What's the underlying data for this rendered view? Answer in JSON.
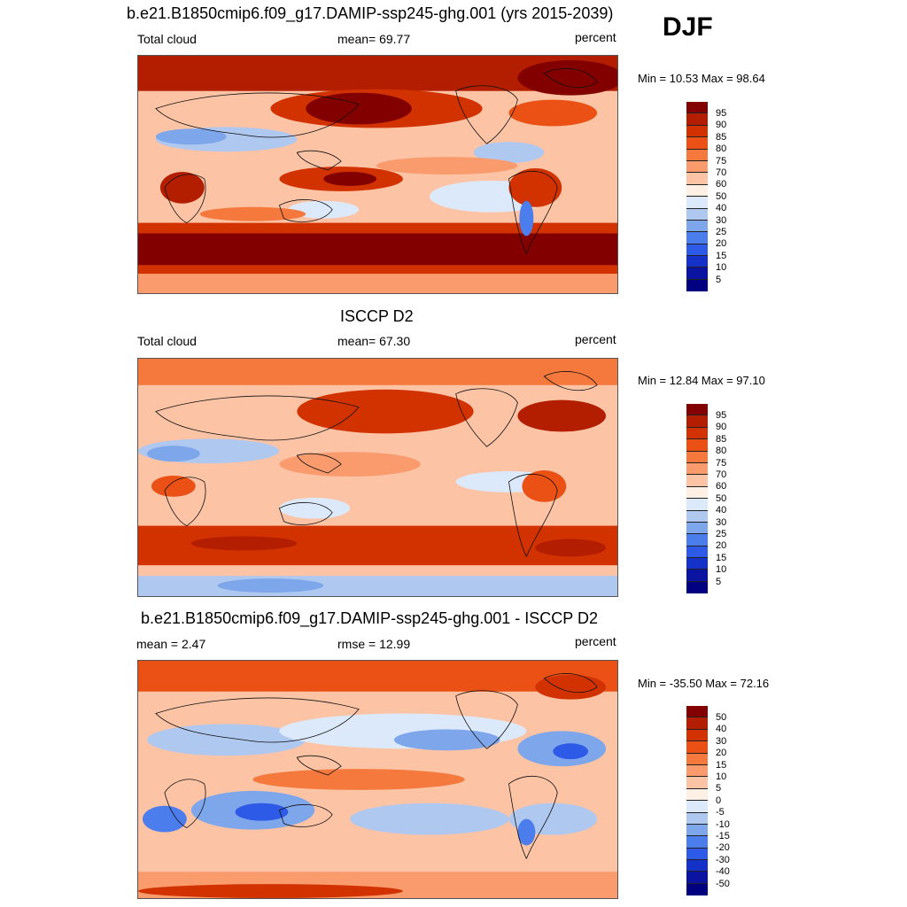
{
  "season": "DJF",
  "panels": [
    {
      "title": "b.e21.B1850cmip6.f09_g17.DAMIP-ssp245-ghg.001 (yrs 2015-2039)",
      "left_label": "Total cloud",
      "center_label": "mean=  69.77",
      "right_label": "percent",
      "minmax": "Min =  10.53 Max =  98.64",
      "colorbar_ticks": [
        "95",
        "90",
        "85",
        "80",
        "75",
        "70",
        "60",
        "50",
        "40",
        "30",
        "25",
        "20",
        "15",
        "10",
        "5"
      ]
    },
    {
      "title": "ISCCP D2",
      "left_label": "Total cloud",
      "center_label": "mean=  67.30",
      "right_label": "percent",
      "minmax": "Min =  12.84 Max =  97.10",
      "colorbar_ticks": [
        "95",
        "90",
        "85",
        "80",
        "75",
        "70",
        "60",
        "50",
        "40",
        "30",
        "25",
        "20",
        "15",
        "10",
        "5"
      ]
    },
    {
      "title": "b.e21.B1850cmip6.f09_g17.DAMIP-ssp245-ghg.001 - ISCCP D2",
      "left_label": "mean =   2.47",
      "center_label": "rmse =  12.99",
      "right_label": "percent",
      "minmax": "Min = -35.50 Max =  72.16",
      "colorbar_ticks": [
        "50",
        "40",
        "30",
        "20",
        "15",
        "10",
        "5",
        "0",
        "-5",
        "-10",
        "-15",
        "-20",
        "-30",
        "-40",
        "-50"
      ]
    }
  ],
  "colors": {
    "scale": [
      "#820000",
      "#b41e00",
      "#d23200",
      "#eb5014",
      "#f5783c",
      "#fa9b6e",
      "#fcc3a5",
      "#fff0e6",
      "#dce9fa",
      "#afc8f0",
      "#7ea6eb",
      "#4b7ded",
      "#2d5ae6",
      "#1432c8",
      "#0a14a0",
      "#000080"
    ]
  }
}
